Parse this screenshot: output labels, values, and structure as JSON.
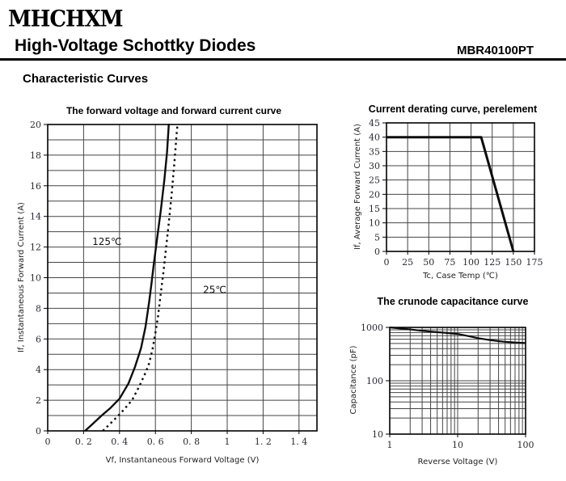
{
  "header": {
    "logo": "MHCHXM",
    "title": "High-Voltage Schottky Diodes",
    "part_number": "MBR40100PT",
    "section_title": "Characteristic Curves"
  },
  "colors": {
    "curve": "#0d0d0d",
    "grid": "#444444",
    "border": "#000000",
    "tick_text": "#2a2a33"
  },
  "chart_data": [
    {
      "type": "line",
      "title": "The forward voltage and forward current curve",
      "xlabel": "Vf, Instantaneous Forward Voltage (V)",
      "ylabel": "If, Instantaneous Forward Current (A)",
      "xlim": [
        0,
        1.5
      ],
      "ylim": [
        0,
        20
      ],
      "x_grid_step": 0.2,
      "y_grid_step": 1,
      "x_tick_values": [
        0,
        0.2,
        0.4,
        0.6,
        0.8,
        1.0,
        1.2,
        1.4
      ],
      "x_tick_labels": [
        "0",
        "0. 2",
        "0. 4",
        "0. 6",
        "0. 8",
        "1",
        "1. 2",
        "1. 4"
      ],
      "y_tick_values": [
        0,
        2,
        4,
        6,
        8,
        10,
        12,
        14,
        16,
        18,
        20
      ],
      "y_tick_labels": [
        "0",
        "2",
        "4",
        "6",
        "8",
        "10",
        "12",
        "14",
        "16",
        "18",
        "20"
      ],
      "annotations": [
        {
          "text": "125℃",
          "x": 0.33,
          "y": 12.35
        },
        {
          "text": "25℃",
          "x": 0.93,
          "y": 9.2
        }
      ],
      "series": [
        {
          "name": "125℃",
          "line": "solid",
          "points": [
            [
              0.208,
              0
            ],
            [
              0.25,
              0.45
            ],
            [
              0.3,
              1.0
            ],
            [
              0.35,
              1.5
            ],
            [
              0.4,
              2.1
            ],
            [
              0.45,
              3.1
            ],
            [
              0.487,
              4.2
            ],
            [
              0.52,
              5.4
            ],
            [
              0.545,
              6.8
            ],
            [
              0.565,
              8.4
            ],
            [
              0.578,
              9.6
            ],
            [
              0.59,
              10.8
            ],
            [
              0.61,
              12.6
            ],
            [
              0.63,
              14.4
            ],
            [
              0.65,
              16.4
            ],
            [
              0.665,
              18.2
            ],
            [
              0.676,
              20.3
            ]
          ]
        },
        {
          "name": "25℃",
          "line": "dotted",
          "points": [
            [
              0.307,
              0
            ],
            [
              0.36,
              0.6
            ],
            [
              0.41,
              1.2
            ],
            [
              0.47,
              2.0
            ],
            [
              0.51,
              2.9
            ],
            [
              0.545,
              3.8
            ],
            [
              0.565,
              4.4
            ],
            [
              0.585,
              5.4
            ],
            [
              0.6,
              6.4
            ],
            [
              0.615,
              7.5
            ],
            [
              0.63,
              9.0
            ],
            [
              0.645,
              10.4
            ],
            [
              0.66,
              12.0
            ],
            [
              0.675,
              13.6
            ],
            [
              0.69,
              15.4
            ],
            [
              0.705,
              17.4
            ],
            [
              0.72,
              19.6
            ],
            [
              0.726,
              20.3
            ]
          ]
        }
      ]
    },
    {
      "type": "line",
      "title": "Current derating curve, perelement",
      "xlabel": "Tc, Case Temp (℃)",
      "ylabel": "If, Average Forward Current (A)",
      "xlim": [
        0,
        175
      ],
      "ylim": [
        0,
        45
      ],
      "x_grid_step": 25,
      "y_grid_step": 5,
      "x_tick_values": [
        0,
        25,
        50,
        75,
        100,
        125,
        150,
        175
      ],
      "x_tick_labels": [
        "0",
        "25",
        "50",
        "75",
        "100",
        "125",
        "150",
        "175"
      ],
      "y_tick_values": [
        0,
        5,
        10,
        15,
        20,
        25,
        30,
        35,
        40,
        45
      ],
      "y_tick_labels": [
        "0",
        "5",
        "10",
        "15",
        "20",
        "25",
        "30",
        "35",
        "40",
        "45"
      ],
      "annotations": [],
      "series": [
        {
          "name": "derating",
          "line": "solid",
          "points": [
            [
              0,
              40
            ],
            [
              112,
              40
            ],
            [
              150,
              0
            ]
          ]
        }
      ]
    },
    {
      "type": "line",
      "xscale": "log",
      "yscale": "log",
      "title": "The crunode capacitance curve",
      "xlabel": "Reverse Voltage (V)",
      "ylabel": "Capacitance (pF)",
      "xlim": [
        1,
        100
      ],
      "ylim": [
        10,
        1000
      ],
      "x_tick_values": [
        1,
        10,
        100
      ],
      "x_tick_labels": [
        "1",
        "10",
        "100"
      ],
      "y_tick_values": [
        10,
        100,
        1000
      ],
      "y_tick_labels": [
        "10",
        "100",
        "1000"
      ],
      "annotations": [],
      "series": [
        {
          "name": "capacitance",
          "line": "solid",
          "points": [
            [
              1,
              1000
            ],
            [
              1.5,
              950
            ],
            [
              2,
              915
            ],
            [
              3,
              865
            ],
            [
              4,
              835
            ],
            [
              5,
              815
            ],
            [
              7,
              785
            ],
            [
              10,
              755
            ],
            [
              15,
              680
            ],
            [
              20,
              628
            ],
            [
              30,
              578
            ],
            [
              40,
              553
            ],
            [
              50,
              538
            ],
            [
              70,
              520
            ],
            [
              100,
              508
            ]
          ]
        }
      ]
    }
  ]
}
